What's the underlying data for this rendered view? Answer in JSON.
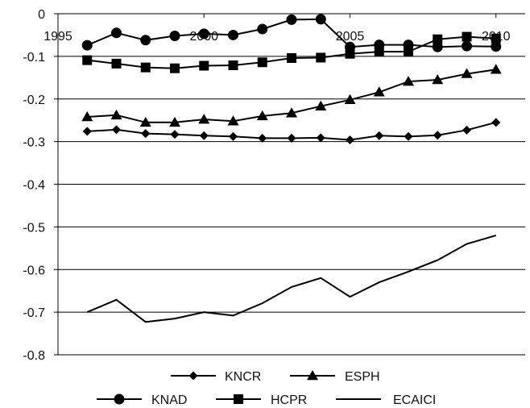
{
  "chart_data": {
    "type": "line",
    "title": "",
    "xlabel": "",
    "ylabel": "",
    "x": [
      1996,
      1997,
      1998,
      1999,
      2000,
      2001,
      2002,
      2003,
      2004,
      2005,
      2006,
      2007,
      2008,
      2009,
      2010
    ],
    "xlim": [
      1995,
      2011
    ],
    "ylim": [
      -0.8,
      0
    ],
    "x_ticks": [
      "1995",
      "2000",
      "2005",
      "2010"
    ],
    "y_ticks": [
      "0",
      "-0.1",
      "-0.2",
      "-0.3",
      "-0.4",
      "-0.5",
      "-0.6",
      "-0.7",
      "-0.8"
    ],
    "grid": "horizontal",
    "legend_position": "bottom",
    "series": [
      {
        "name": "KNCR",
        "marker": "diamond",
        "values": [
          -0.276,
          -0.272,
          -0.281,
          -0.283,
          -0.286,
          -0.288,
          -0.292,
          -0.292,
          -0.291,
          -0.296,
          -0.286,
          -0.288,
          -0.285,
          -0.273,
          -0.255
        ]
      },
      {
        "name": "ESPH",
        "marker": "triangle",
        "values": [
          -0.242,
          -0.238,
          -0.255,
          -0.255,
          -0.248,
          -0.252,
          -0.24,
          -0.233,
          -0.217,
          -0.202,
          -0.184,
          -0.159,
          -0.155,
          -0.141,
          -0.131
        ]
      },
      {
        "name": "KNAD",
        "marker": "circle",
        "values": [
          -0.074,
          -0.045,
          -0.062,
          -0.052,
          -0.047,
          -0.05,
          -0.036,
          -0.014,
          -0.013,
          -0.078,
          -0.073,
          -0.073,
          -0.078,
          -0.076,
          -0.077
        ]
      },
      {
        "name": "HCPR",
        "marker": "square",
        "values": [
          -0.109,
          -0.117,
          -0.126,
          -0.128,
          -0.122,
          -0.121,
          -0.114,
          -0.104,
          -0.103,
          -0.094,
          -0.089,
          -0.089,
          -0.06,
          -0.054,
          -0.058
        ]
      },
      {
        "name": "ECAICI",
        "marker": "none",
        "values": [
          -0.7,
          -0.671,
          -0.723,
          -0.715,
          -0.7,
          -0.708,
          -0.679,
          -0.641,
          -0.62,
          -0.664,
          -0.63,
          -0.605,
          -0.578,
          -0.54,
          -0.52
        ]
      }
    ]
  }
}
